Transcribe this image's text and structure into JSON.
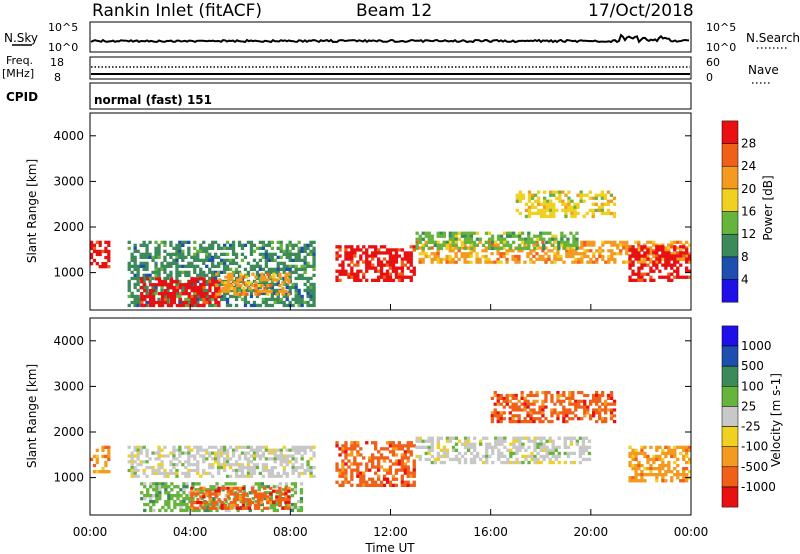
{
  "header": {
    "station": "Rankin Inlet (fitACF)",
    "beam": "Beam 12",
    "date": "17/Oct/2018"
  },
  "nsky_panel": {
    "left_label": "N.Sky",
    "right_label": "N.Search",
    "left_top": "10^5",
    "left_bottom": "10^0",
    "right_top": "10^5",
    "right_bottom": "10^0"
  },
  "freq_panel": {
    "left_label": "Freq.",
    "left_unit": "[MHz]",
    "right_label": "Nave",
    "left_top": "18",
    "left_bottom": "8",
    "right_top": "60",
    "right_bottom": "0"
  },
  "cpid_panel": {
    "label": "CPID",
    "text": "normal (fast) 151"
  },
  "colors": {
    "power": [
      "#2010e8",
      "#1f4fae",
      "#3c8a5a",
      "#66b43c",
      "#f0d020",
      "#f59a20",
      "#f06018",
      "#e81010"
    ],
    "velocity": [
      "#e81010",
      "#f06018",
      "#f59a20",
      "#f0d020",
      "#c8c8c8",
      "#66b43c",
      "#3c8a5a",
      "#1f4fae",
      "#2010e8"
    ]
  },
  "chart_data": [
    {
      "type": "heatmap",
      "name": "power",
      "ylabel": "Slant Range [km]",
      "xlim": [
        0,
        24
      ],
      "ylim": [
        180,
        4500
      ],
      "yticks": [
        "1000",
        "2000",
        "3000",
        "4000"
      ],
      "colorbar": {
        "label": "Power [dB]",
        "ticks": [
          "4",
          "8",
          "12",
          "16",
          "20",
          "24",
          "28"
        ]
      },
      "regions": [
        {
          "t0": 0.0,
          "t1": 0.8,
          "r0": 1100,
          "r1": 1700,
          "c": 7
        },
        {
          "t0": 1.5,
          "t1": 9.0,
          "r0": 250,
          "r1": 1700,
          "c": 2
        },
        {
          "t0": 2.0,
          "t1": 5.2,
          "r0": 250,
          "r1": 900,
          "c": 7
        },
        {
          "t0": 5.0,
          "t1": 8.0,
          "r0": 500,
          "r1": 1000,
          "c": 5
        },
        {
          "t0": 9.8,
          "t1": 13.0,
          "r0": 800,
          "r1": 1600,
          "c": 7
        },
        {
          "t0": 13.0,
          "t1": 24.0,
          "r0": 1200,
          "r1": 1700,
          "c": 5
        },
        {
          "t0": 13.0,
          "t1": 19.5,
          "r0": 1500,
          "r1": 1900,
          "c": 3
        },
        {
          "t0": 17.0,
          "t1": 21.0,
          "r0": 2200,
          "r1": 2800,
          "c": 4
        },
        {
          "t0": 21.5,
          "t1": 24.0,
          "r0": 800,
          "r1": 1600,
          "c": 7
        }
      ]
    },
    {
      "type": "heatmap",
      "name": "velocity",
      "ylabel": "Slant Range [km]",
      "xlabel": "Time UT",
      "xlim": [
        0,
        24
      ],
      "ylim": [
        180,
        4500
      ],
      "xticks": [
        "00:00",
        "04:00",
        "08:00",
        "12:00",
        "16:00",
        "20:00",
        "00:00"
      ],
      "yticks": [
        "1000",
        "2000",
        "3000",
        "4000"
      ],
      "colorbar": {
        "label": "Velocity [m s-1]",
        "ticks": [
          "1000",
          "500",
          "100",
          "25",
          "-25",
          "-100",
          "-500",
          "-1000"
        ]
      },
      "regions": [
        {
          "t0": 0.0,
          "t1": 0.8,
          "r0": 1100,
          "r1": 1700,
          "c": 2
        },
        {
          "t0": 1.5,
          "t1": 9.0,
          "r0": 1000,
          "r1": 1700,
          "c": 4
        },
        {
          "t0": 2.0,
          "t1": 8.5,
          "r0": 250,
          "r1": 900,
          "c": 5
        },
        {
          "t0": 4.0,
          "t1": 8.0,
          "r0": 300,
          "r1": 800,
          "c": 1
        },
        {
          "t0": 9.8,
          "t1": 13.0,
          "r0": 800,
          "r1": 1800,
          "c": 1
        },
        {
          "t0": 13.0,
          "t1": 20.0,
          "r0": 1300,
          "r1": 1900,
          "c": 4
        },
        {
          "t0": 16.0,
          "t1": 21.0,
          "r0": 2200,
          "r1": 2900,
          "c": 1
        },
        {
          "t0": 21.5,
          "t1": 24.0,
          "r0": 900,
          "r1": 1700,
          "c": 2
        }
      ]
    }
  ]
}
